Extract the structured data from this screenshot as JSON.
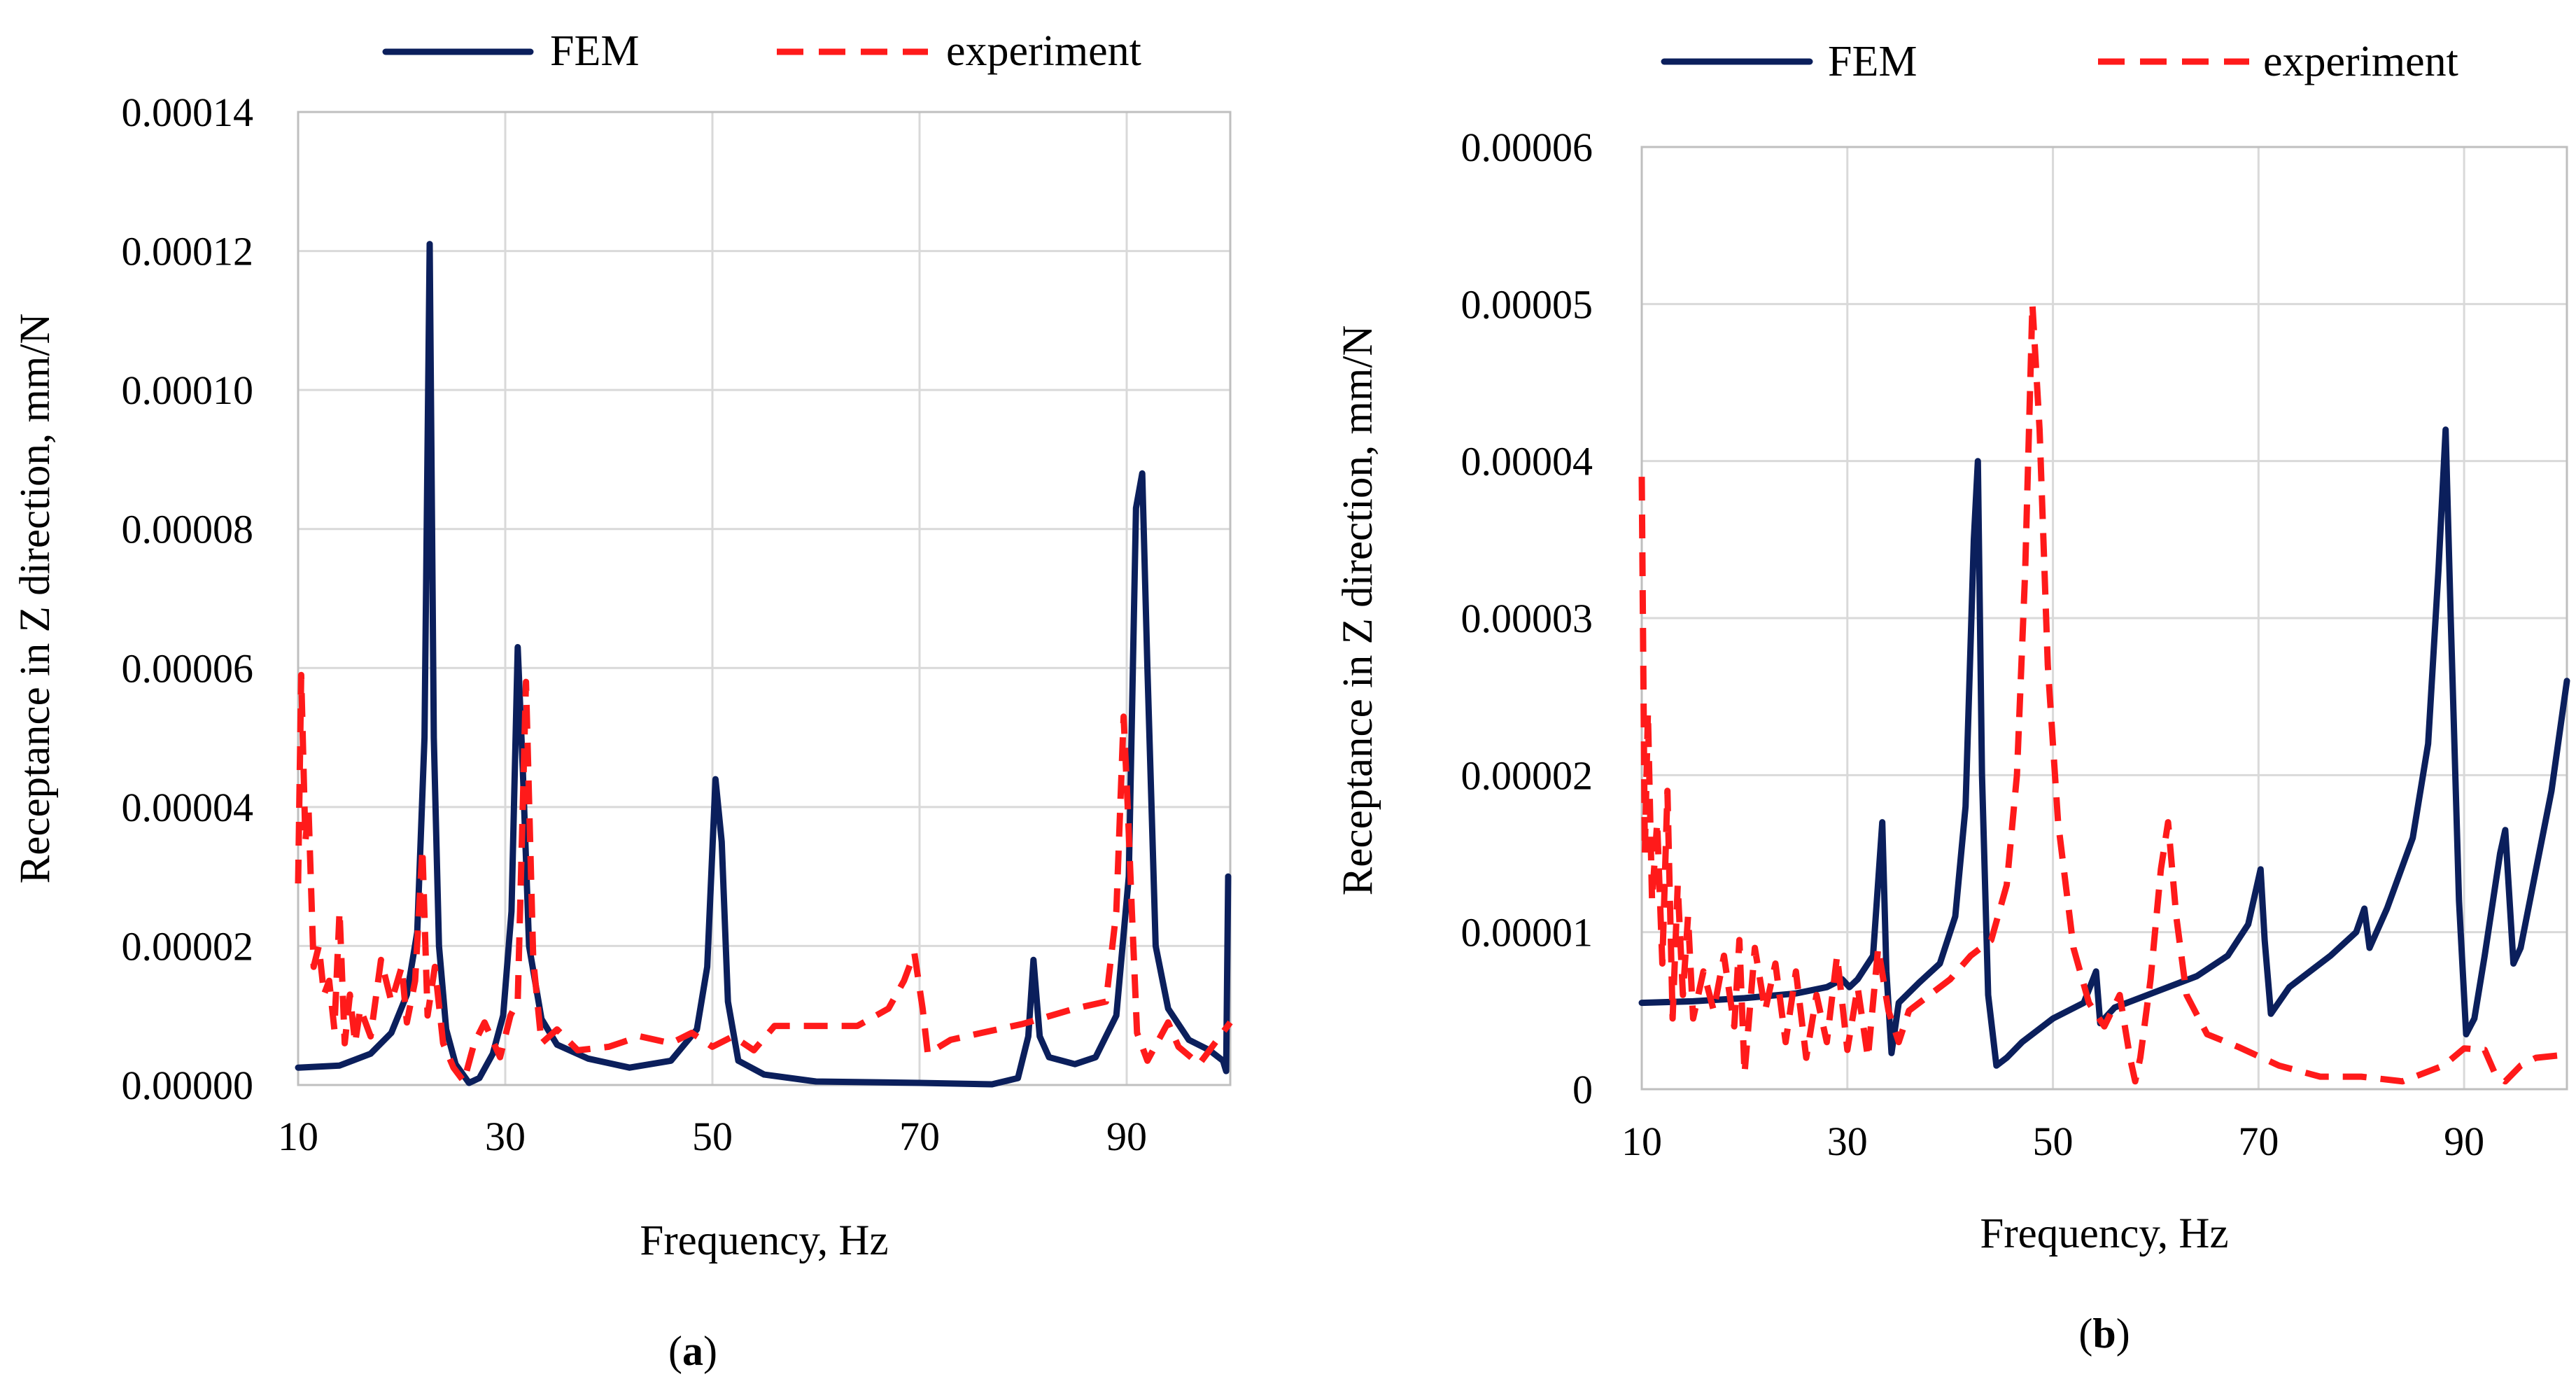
{
  "colors": {
    "fem": "#0b1f5c",
    "experiment": "#ff1a1a"
  },
  "chart_data": [
    {
      "panel": "a",
      "panel_label": {
        "open": "(",
        "letter": "a",
        "close": ")"
      },
      "type": "line",
      "xlabel": "Frequency, Hz",
      "ylabel": "Receptance in Z direction, mm/N",
      "xlim": [
        10,
        100
      ],
      "ylim": [
        0,
        0.00014
      ],
      "x_ticks": [
        10,
        30,
        50,
        70,
        90
      ],
      "y_ticks": [
        0,
        2e-05,
        4e-05,
        6e-05,
        8e-05,
        0.0001,
        0.00012,
        0.00014
      ],
      "y_tick_labels": [
        "0.00000",
        "0.00002",
        "0.00004",
        "0.00006",
        "0.00008",
        "0.00010",
        "0.00012",
        "0.00014"
      ],
      "legend": [
        "FEM",
        "experiment"
      ],
      "series": [
        {
          "name": "FEM",
          "style": "solid",
          "points": [
            [
              10,
              2.5e-06
            ],
            [
              14,
              2.8e-06
            ],
            [
              17,
              4.5e-06
            ],
            [
              19,
              7.5e-06
            ],
            [
              20.5,
              1.3e-05
            ],
            [
              21.5,
              2.2e-05
            ],
            [
              22.2,
              5e-05
            ],
            [
              22.7,
              0.000121
            ],
            [
              23.1,
              5e-05
            ],
            [
              23.6,
              2e-05
            ],
            [
              24.3,
              8e-06
            ],
            [
              25.2,
              3e-06
            ],
            [
              26.5,
              3e-07
            ],
            [
              27.5,
              1e-06
            ],
            [
              28.8,
              4.5e-06
            ],
            [
              29.8,
              1e-05
            ],
            [
              30.6,
              2.5e-05
            ],
            [
              31.2,
              6.3e-05
            ],
            [
              31.7,
              4.5e-05
            ],
            [
              32.3,
              2e-05
            ],
            [
              33.5,
              9.5e-06
            ],
            [
              35,
              5.8e-06
            ],
            [
              38,
              3.8e-06
            ],
            [
              42,
              2.5e-06
            ],
            [
              46,
              3.5e-06
            ],
            [
              48.5,
              8e-06
            ],
            [
              49.5,
              1.7e-05
            ],
            [
              50.3,
              4.4e-05
            ],
            [
              50.9,
              3.5e-05
            ],
            [
              51.5,
              1.2e-05
            ],
            [
              52.5,
              3.5e-06
            ],
            [
              55,
              1.5e-06
            ],
            [
              60,
              5e-07
            ],
            [
              70,
              3e-07
            ],
            [
              77,
              1e-07
            ],
            [
              79.5,
              1e-06
            ],
            [
              80.5,
              7e-06
            ],
            [
              81,
              1.8e-05
            ],
            [
              81.6,
              7e-06
            ],
            [
              82.5,
              4e-06
            ],
            [
              85,
              3e-06
            ],
            [
              87,
              4e-06
            ],
            [
              89,
              1e-05
            ],
            [
              90.2,
              3e-05
            ],
            [
              90.9,
              8.3e-05
            ],
            [
              91.5,
              8.8e-05
            ],
            [
              92,
              6e-05
            ],
            [
              92.8,
              2e-05
            ],
            [
              94,
              1.1e-05
            ],
            [
              96,
              6.5e-06
            ],
            [
              98,
              5e-06
            ],
            [
              99.3,
              3.5e-06
            ],
            [
              99.6,
              2e-06
            ],
            [
              99.8,
              3e-05
            ]
          ]
        },
        {
          "name": "experiment",
          "style": "dashed",
          "points": [
            [
              10,
              2.9e-05
            ],
            [
              10.3,
              5.9e-05
            ],
            [
              10.7,
              3.5e-05
            ],
            [
              11,
              4e-05
            ],
            [
              11.5,
              1.7e-05
            ],
            [
              12,
              2e-05
            ],
            [
              12.5,
              1.3e-05
            ],
            [
              13,
              1.5e-05
            ],
            [
              13.5,
              8e-06
            ],
            [
              14,
              2.5e-05
            ],
            [
              14.5,
              6e-06
            ],
            [
              15,
              1.3e-05
            ],
            [
              15.5,
              6e-06
            ],
            [
              16,
              1.1e-05
            ],
            [
              17,
              7e-06
            ],
            [
              18,
              1.8e-05
            ],
            [
              19,
              1.2e-05
            ],
            [
              20,
              1.7e-05
            ],
            [
              20.5,
              9e-06
            ],
            [
              21.3,
              1.5e-05
            ],
            [
              22,
              3.4e-05
            ],
            [
              22.5,
              1e-05
            ],
            [
              23.2,
              1.7e-05
            ],
            [
              24,
              6e-06
            ],
            [
              25,
              2.5e-06
            ],
            [
              26,
              5e-07
            ],
            [
              27,
              6e-06
            ],
            [
              28,
              9e-06
            ],
            [
              29.5,
              4e-06
            ],
            [
              30.5,
              1e-05
            ],
            [
              31.2,
              1.2e-05
            ],
            [
              32,
              5.8e-05
            ],
            [
              32.7,
              1.8e-05
            ],
            [
              33.5,
              6e-06
            ],
            [
              35,
              8e-06
            ],
            [
              37,
              5e-06
            ],
            [
              40,
              5.5e-06
            ],
            [
              43,
              7e-06
            ],
            [
              46,
              6e-06
            ],
            [
              48,
              7.5e-06
            ],
            [
              50,
              5.5e-06
            ],
            [
              52,
              7e-06
            ],
            [
              54,
              5e-06
            ],
            [
              56,
              8.5e-06
            ],
            [
              60,
              8.5e-06
            ],
            [
              64,
              8.5e-06
            ],
            [
              67,
              1.1e-05
            ],
            [
              68.5,
              1.5e-05
            ],
            [
              69.5,
              1.9e-05
            ],
            [
              70.3,
              1.1e-05
            ],
            [
              70.8,
              4.5e-06
            ],
            [
              73,
              6.5e-06
            ],
            [
              76,
              7.5e-06
            ],
            [
              80,
              8.8e-06
            ],
            [
              85,
              1.1e-05
            ],
            [
              88,
              1.2e-05
            ],
            [
              89,
              2.5e-05
            ],
            [
              89.7,
              5.3e-05
            ],
            [
              90.1,
              4e-05
            ],
            [
              90.5,
              2.5e-05
            ],
            [
              91,
              7.5e-06
            ],
            [
              92,
              3.5e-06
            ],
            [
              94,
              9e-06
            ],
            [
              95,
              5.5e-06
            ],
            [
              97,
              3e-06
            ],
            [
              98.5,
              6e-06
            ],
            [
              100,
              9e-06
            ]
          ]
        }
      ]
    },
    {
      "panel": "b",
      "panel_label": {
        "open": "(",
        "letter": "b",
        "close": ")"
      },
      "type": "line",
      "xlabel": "Frequency, Hz",
      "ylabel": "Receptance in Z direction, mm/N",
      "xlim": [
        10,
        100
      ],
      "ylim": [
        0,
        6e-05
      ],
      "x_ticks": [
        10,
        30,
        50,
        70,
        90
      ],
      "y_ticks": [
        0,
        1e-05,
        2e-05,
        3e-05,
        4e-05,
        5e-05,
        6e-05
      ],
      "y_tick_labels": [
        "0",
        "0.00001",
        "0.00002",
        "0.00003",
        "0.00004",
        "0.00005",
        "0.00006"
      ],
      "legend": [
        "FEM",
        "experiment"
      ],
      "series": [
        {
          "name": "FEM",
          "style": "solid",
          "points": [
            [
              10,
              5.5e-06
            ],
            [
              15,
              5.6e-06
            ],
            [
              20,
              5.8e-06
            ],
            [
              25,
              6.1e-06
            ],
            [
              28,
              6.5e-06
            ],
            [
              29.5,
              7e-06
            ],
            [
              30.2,
              6.5e-06
            ],
            [
              31,
              7e-06
            ],
            [
              32.5,
              8.5e-06
            ],
            [
              33.4,
              1.7e-05
            ],
            [
              33.8,
              7.5e-06
            ],
            [
              34.3,
              2.3e-06
            ],
            [
              35,
              5.5e-06
            ],
            [
              37,
              6.8e-06
            ],
            [
              39,
              8e-06
            ],
            [
              40.5,
              1.1e-05
            ],
            [
              41.5,
              1.8e-05
            ],
            [
              42.3,
              3.5e-05
            ],
            [
              42.7,
              4e-05
            ],
            [
              43.1,
              2e-05
            ],
            [
              43.7,
              6e-06
            ],
            [
              44.5,
              1.5e-06
            ],
            [
              45.5,
              2e-06
            ],
            [
              47,
              3e-06
            ],
            [
              50,
              4.5e-06
            ],
            [
              53,
              5.5e-06
            ],
            [
              54.2,
              7.5e-06
            ],
            [
              54.6,
              4.2e-06
            ],
            [
              56,
              5.2e-06
            ],
            [
              60,
              6.2e-06
            ],
            [
              64,
              7.2e-06
            ],
            [
              67,
              8.5e-06
            ],
            [
              69,
              1.05e-05
            ],
            [
              70.2,
              1.4e-05
            ],
            [
              70.6,
              9.5e-06
            ],
            [
              71.2,
              4.8e-06
            ],
            [
              73,
              6.5e-06
            ],
            [
              77,
              8.5e-06
            ],
            [
              79.5,
              1e-05
            ],
            [
              80.3,
              1.15e-05
            ],
            [
              80.8,
              9e-06
            ],
            [
              82.5,
              1.15e-05
            ],
            [
              85,
              1.6e-05
            ],
            [
              86.5,
              2.2e-05
            ],
            [
              87.5,
              3.3e-05
            ],
            [
              88.2,
              4.2e-05
            ],
            [
              88.7,
              3e-05
            ],
            [
              89.5,
              1.2e-05
            ],
            [
              90.2,
              3.5e-06
            ],
            [
              91,
              4.5e-06
            ],
            [
              92,
              8.5e-06
            ],
            [
              93.5,
              1.5e-05
            ],
            [
              94,
              1.65e-05
            ],
            [
              94.8,
              8e-06
            ],
            [
              95.5,
              9e-06
            ],
            [
              97,
              1.4e-05
            ],
            [
              98.5,
              1.9e-05
            ],
            [
              100,
              2.6e-05
            ]
          ]
        },
        {
          "name": "experiment",
          "style": "dashed",
          "points": [
            [
              10,
              3.9e-05
            ],
            [
              10.3,
              1.5e-05
            ],
            [
              10.6,
              2.4e-05
            ],
            [
              11,
              1.2e-05
            ],
            [
              11.5,
              1.7e-05
            ],
            [
              12,
              8e-06
            ],
            [
              12.5,
              1.9e-05
            ],
            [
              13,
              4.5e-06
            ],
            [
              13.5,
              1.3e-05
            ],
            [
              14,
              6e-06
            ],
            [
              14.5,
              1.1e-05
            ],
            [
              15,
              4.5e-06
            ],
            [
              16,
              7.5e-06
            ],
            [
              17,
              5e-06
            ],
            [
              18,
              8.5e-06
            ],
            [
              19,
              4e-06
            ],
            [
              19.5,
              9.5e-06
            ],
            [
              20,
              1e-06
            ],
            [
              21,
              9e-06
            ],
            [
              22,
              5e-06
            ],
            [
              23,
              8e-06
            ],
            [
              24,
              3e-06
            ],
            [
              25,
              7.5e-06
            ],
            [
              26,
              2e-06
            ],
            [
              27,
              6e-06
            ],
            [
              28,
              3e-06
            ],
            [
              29,
              8.5e-06
            ],
            [
              30,
              2.5e-06
            ],
            [
              31,
              6.5e-06
            ],
            [
              32,
              2e-06
            ],
            [
              33,
              9e-06
            ],
            [
              34,
              5e-06
            ],
            [
              35,
              3e-06
            ],
            [
              36,
              5e-06
            ],
            [
              38,
              6e-06
            ],
            [
              40,
              7e-06
            ],
            [
              42,
              8.5e-06
            ],
            [
              44,
              9.5e-06
            ],
            [
              45.5,
              1.3e-05
            ],
            [
              46.5,
              2e-05
            ],
            [
              47.3,
              3.3e-05
            ],
            [
              48,
              5e-05
            ],
            [
              48.7,
              4.2e-05
            ],
            [
              49.5,
              2.7e-05
            ],
            [
              50.5,
              1.7e-05
            ],
            [
              52,
              9e-06
            ],
            [
              53.5,
              5.5e-06
            ],
            [
              55,
              4e-06
            ],
            [
              56.5,
              6e-06
            ],
            [
              57.5,
              2e-06
            ],
            [
              58,
              5e-07
            ],
            [
              58.5,
              2e-06
            ],
            [
              59.5,
              7e-06
            ],
            [
              60.5,
              1.4e-05
            ],
            [
              61.2,
              1.7e-05
            ],
            [
              62,
              1.1e-05
            ],
            [
              63,
              6e-06
            ],
            [
              65,
              3.5e-06
            ],
            [
              68,
              2.7e-06
            ],
            [
              72,
              1.5e-06
            ],
            [
              76,
              8e-07
            ],
            [
              80,
              8e-07
            ],
            [
              84,
              5e-07
            ],
            [
              88,
              1.5e-06
            ],
            [
              90,
              2.6e-06
            ],
            [
              92,
              2.5e-06
            ],
            [
              93,
              1e-06
            ],
            [
              94,
              5e-07
            ],
            [
              95.5,
              1.5e-06
            ],
            [
              97,
              2e-06
            ],
            [
              100,
              2.2e-06
            ]
          ]
        }
      ]
    }
  ]
}
